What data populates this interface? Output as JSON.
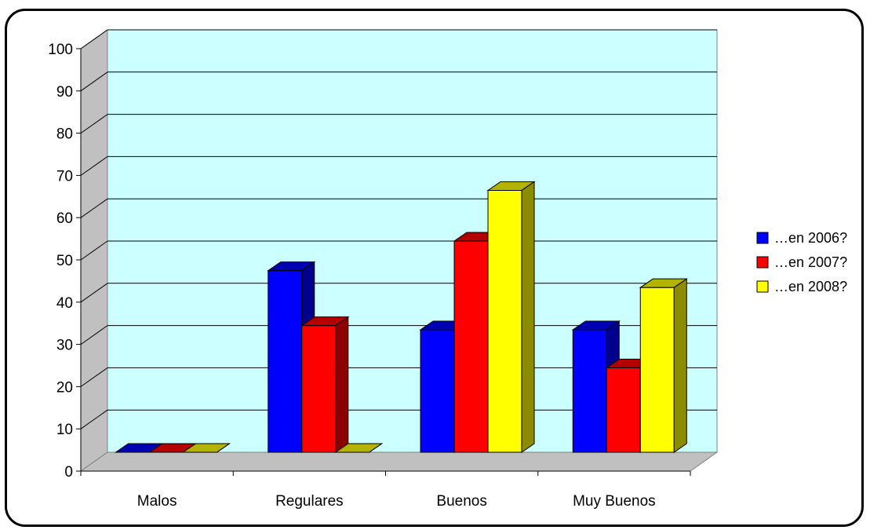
{
  "chart_data": {
    "type": "bar",
    "style": "3d-clustered",
    "categories": [
      "Malos",
      "Regulares",
      "Buenos",
      "Muy Buenos"
    ],
    "series": [
      {
        "name": "…en 2006?",
        "values": [
          0,
          43,
          29,
          29
        ],
        "color": "#0000ff"
      },
      {
        "name": "…en 2007?",
        "values": [
          0,
          30,
          50,
          20
        ],
        "color": "#ff0000"
      },
      {
        "name": "…en 2008?",
        "values": [
          0,
          0,
          62,
          39
        ],
        "color": "#ffff00"
      }
    ],
    "ylim": [
      0,
      100
    ],
    "yticks": [
      0,
      10,
      20,
      30,
      40,
      50,
      60,
      70,
      80,
      90,
      100
    ],
    "grid": true,
    "legend": "right",
    "plot_background": "#ccffff"
  }
}
